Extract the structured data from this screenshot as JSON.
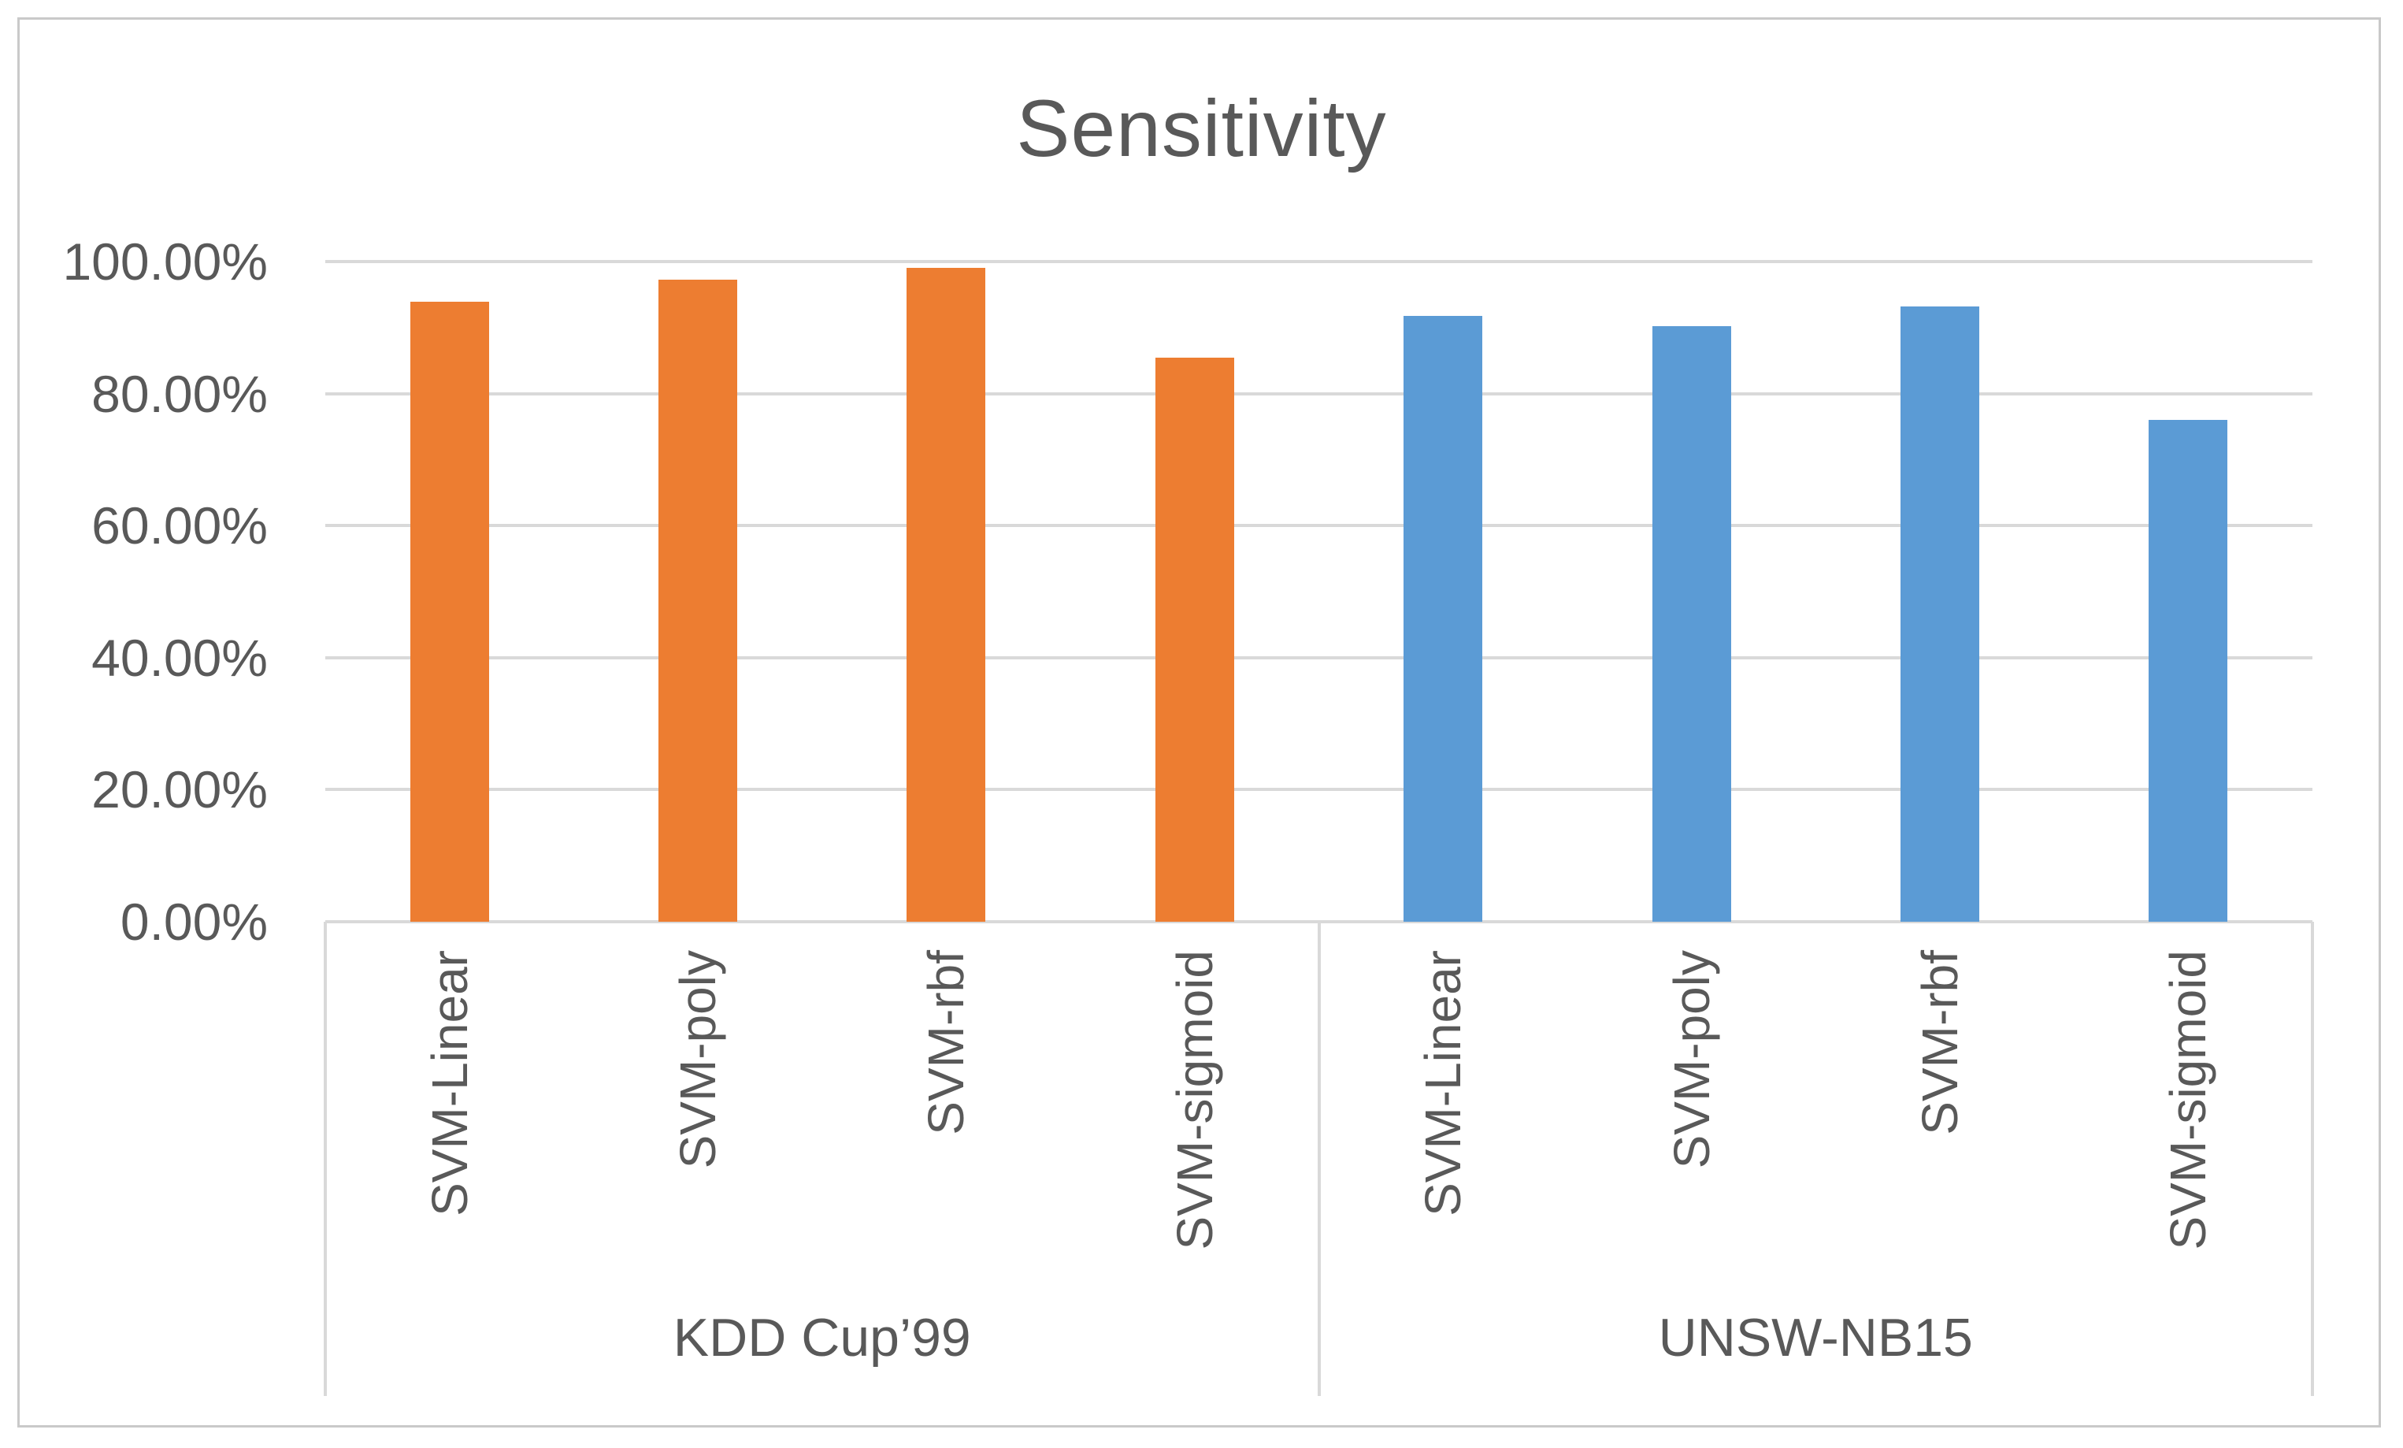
{
  "chart_data": {
    "type": "bar",
    "title": "Sensitivity",
    "categories": [
      "SVM-Linear",
      "SVM-poly",
      "SVM-rbf",
      "SVM-sigmoid"
    ],
    "series": [
      {
        "name": "KDD Cup’99",
        "color": "#ED7D31",
        "values": [
          93.9,
          97.3,
          99.0,
          85.4
        ]
      },
      {
        "name": "UNSW-NB15",
        "color": "#5B9BD5",
        "values": [
          91.8,
          90.2,
          93.2,
          76.0
        ]
      }
    ],
    "xlabel": "",
    "ylabel": "",
    "ylim": [
      0,
      100
    ],
    "y_ticks": [
      {
        "value": 100,
        "label": "100.00%"
      },
      {
        "value": 80,
        "label": "80.00%"
      },
      {
        "value": 60,
        "label": "60.00%"
      },
      {
        "value": 40,
        "label": "40.00%"
      },
      {
        "value": 20,
        "label": "20.00%"
      },
      {
        "value": 0,
        "label": "0.00%"
      }
    ],
    "grid": "horizontal",
    "legend_position": "none",
    "colors": {
      "gridline": "#D9D9D9",
      "axis_text": "#595959",
      "title_text": "#595959",
      "figure_border": "#C9C9C9",
      "background": "#FFFFFF"
    }
  }
}
